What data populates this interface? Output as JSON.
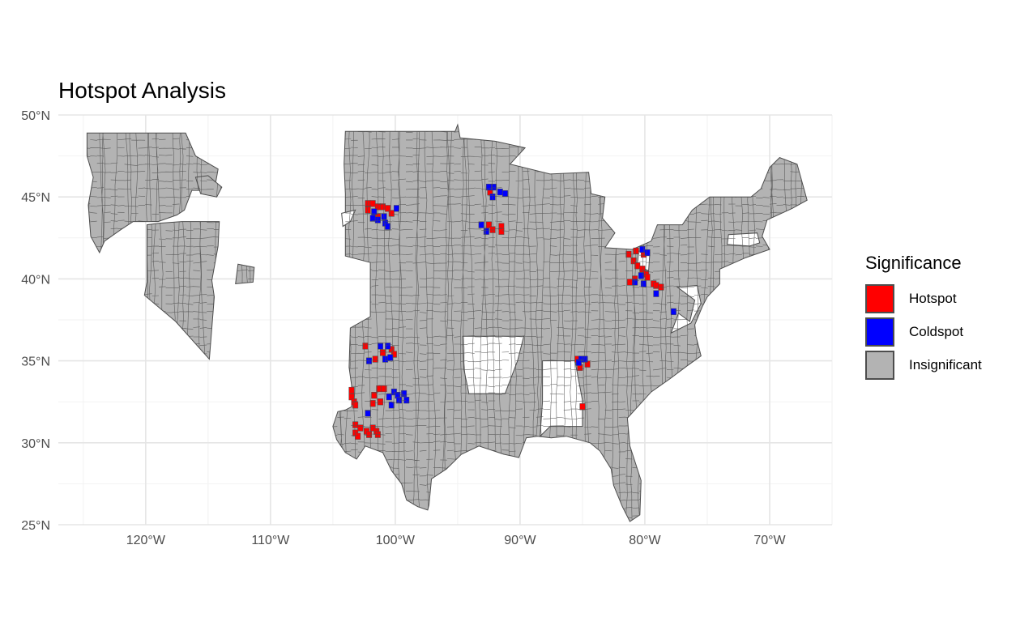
{
  "chart_data": {
    "type": "choropleth-map",
    "title": "Hotspot Analysis",
    "projection": "equirectangular",
    "xlim": [
      -127,
      -65
    ],
    "ylim": [
      25,
      50
    ],
    "x_ticks": [
      {
        "value": -120,
        "label": "120°W"
      },
      {
        "value": -110,
        "label": "110°W"
      },
      {
        "value": -100,
        "label": "100°W"
      },
      {
        "value": -90,
        "label": "90°W"
      },
      {
        "value": -80,
        "label": "80°W"
      },
      {
        "value": -70,
        "label": "70°W"
      }
    ],
    "y_ticks": [
      {
        "value": 25,
        "label": "25°N"
      },
      {
        "value": 30,
        "label": "30°N"
      },
      {
        "value": 35,
        "label": "35°N"
      },
      {
        "value": 40,
        "label": "40°N"
      },
      {
        "value": 45,
        "label": "45°N"
      },
      {
        "value": 50,
        "label": "50°N"
      }
    ],
    "grid": true,
    "legend": {
      "title": "Significance",
      "position": "right",
      "entries": [
        {
          "label": "Hotspot",
          "color": "#ff0000"
        },
        {
          "label": "Coldspot",
          "color": "#0000ff"
        },
        {
          "label": "Insignificant",
          "color": "#b3b3b3"
        }
      ]
    },
    "colors": {
      "hotspot": "#ff0000",
      "coldspot": "#0000ff",
      "insignificant": "#b3b3b3",
      "border": "#4d4d4d",
      "grid": "#e5e5e5"
    },
    "regions": [
      {
        "name": "northwest",
        "lonlat": [
          [
            -124.7,
            48.9
          ],
          [
            -116.8,
            48.9
          ],
          [
            -116,
            47.5
          ],
          [
            -114.2,
            46.7
          ],
          [
            -114.5,
            45.4
          ],
          [
            -116.3,
            45.4
          ],
          [
            -116.9,
            44.2
          ],
          [
            -117.5,
            43.9
          ],
          [
            -119,
            43.5
          ],
          [
            -121,
            43.5
          ],
          [
            -122,
            43
          ],
          [
            -123.3,
            42.3
          ],
          [
            -123.7,
            41.6
          ],
          [
            -124.4,
            42.6
          ],
          [
            -124.6,
            44.5
          ],
          [
            -124.2,
            46.2
          ],
          [
            -124.7,
            47.5
          ]
        ]
      },
      {
        "name": "nevada",
        "lonlat": [
          [
            -119.9,
            43.3
          ],
          [
            -119.9,
            39.8
          ],
          [
            -120.1,
            39
          ],
          [
            -117.6,
            37.4
          ],
          [
            -114.9,
            35.1
          ],
          [
            -114.5,
            38.9
          ],
          [
            -114.7,
            39.9
          ],
          [
            -114.2,
            42
          ],
          [
            -114.1,
            43.5
          ],
          [
            -117.1,
            43.5
          ],
          [
            -118.9,
            43.4
          ]
        ]
      },
      {
        "name": "idaho-fragment",
        "lonlat": [
          [
            -116,
            46.2
          ],
          [
            -115,
            46.3
          ],
          [
            -113.9,
            45.6
          ],
          [
            -114.3,
            45
          ],
          [
            -115.6,
            45.2
          ]
        ]
      },
      {
        "name": "utah-fragment",
        "lonlat": [
          [
            -112.6,
            40.9
          ],
          [
            -111.3,
            40.7
          ],
          [
            -111.4,
            39.8
          ],
          [
            -112.8,
            39.7
          ]
        ]
      },
      {
        "name": "east-us",
        "lonlat": [
          [
            -104,
            49
          ],
          [
            -95.2,
            49
          ],
          [
            -95,
            49.4
          ],
          [
            -94.8,
            48.6
          ],
          [
            -92,
            48.4
          ],
          [
            -89.6,
            48
          ],
          [
            -90.8,
            47
          ],
          [
            -87.6,
            46.4
          ],
          [
            -84.5,
            46.5
          ],
          [
            -84.3,
            45.2
          ],
          [
            -83.2,
            45
          ],
          [
            -83.4,
            43.7
          ],
          [
            -82.4,
            42.8
          ],
          [
            -83.2,
            41.9
          ],
          [
            -81,
            41.8
          ],
          [
            -79.5,
            42.3
          ],
          [
            -79,
            43.3
          ],
          [
            -77,
            43.3
          ],
          [
            -76.2,
            44.2
          ],
          [
            -74.8,
            45
          ],
          [
            -71.5,
            45
          ],
          [
            -70.7,
            45.5
          ],
          [
            -70,
            46.8
          ],
          [
            -69.2,
            47.4
          ],
          [
            -67.8,
            47
          ],
          [
            -67,
            44.8
          ],
          [
            -68.2,
            44.3
          ],
          [
            -70.2,
            43.6
          ],
          [
            -70.6,
            42.6
          ],
          [
            -70,
            41.8
          ],
          [
            -71.9,
            41.3
          ],
          [
            -74,
            40.6
          ],
          [
            -74,
            39.7
          ],
          [
            -75,
            38.9
          ],
          [
            -75.4,
            38.3
          ],
          [
            -76,
            37.2
          ],
          [
            -75.9,
            36.5
          ],
          [
            -75.5,
            35.3
          ],
          [
            -76.6,
            34.7
          ],
          [
            -78,
            33.9
          ],
          [
            -79.5,
            33.1
          ],
          [
            -81.4,
            31.5
          ],
          [
            -81.2,
            29.8
          ],
          [
            -80.3,
            27.7
          ],
          [
            -80.4,
            25.6
          ],
          [
            -81.2,
            25.2
          ],
          [
            -81.8,
            26.1
          ],
          [
            -82.5,
            27.4
          ],
          [
            -82.7,
            28.4
          ],
          [
            -83.6,
            29.5
          ],
          [
            -84.4,
            30
          ],
          [
            -86.3,
            30.4
          ],
          [
            -87.5,
            30.3
          ],
          [
            -88.6,
            30.4
          ],
          [
            -89.5,
            30.3
          ],
          [
            -90.1,
            29.1
          ],
          [
            -91.3,
            29.3
          ],
          [
            -93.3,
            29.8
          ],
          [
            -94.7,
            29.3
          ],
          [
            -95.9,
            28.4
          ],
          [
            -97.1,
            27.8
          ],
          [
            -97.3,
            26.2
          ],
          [
            -97.4,
            25.9
          ],
          [
            -98.2,
            26.1
          ],
          [
            -99.1,
            26.5
          ],
          [
            -99.5,
            27.5
          ],
          [
            -100.3,
            28.3
          ],
          [
            -101,
            29.4
          ],
          [
            -102.4,
            29.8
          ],
          [
            -103.1,
            29
          ],
          [
            -104,
            29.4
          ],
          [
            -104.7,
            30.2
          ],
          [
            -105,
            31
          ],
          [
            -104.6,
            31.9
          ],
          [
            -104,
            32
          ],
          [
            -103.5,
            32.2
          ],
          [
            -103.5,
            33.5
          ],
          [
            -103.7,
            34.6
          ],
          [
            -103.6,
            37
          ],
          [
            -102,
            37.7
          ],
          [
            -102,
            41
          ],
          [
            -104,
            41.4
          ],
          [
            -104,
            45.2
          ],
          [
            -104.1,
            47
          ]
        ]
      }
    ],
    "holes": [
      {
        "name": "arkansas-gap",
        "lonlat": [
          [
            -94.6,
            36.5
          ],
          [
            -89.7,
            36.5
          ],
          [
            -90.2,
            35
          ],
          [
            -91.2,
            33
          ],
          [
            -94.1,
            33
          ],
          [
            -94.5,
            34.5
          ]
        ]
      },
      {
        "name": "alabama-gap",
        "lonlat": [
          [
            -88.2,
            35
          ],
          [
            -85.6,
            35
          ],
          [
            -85,
            32.6
          ],
          [
            -85,
            31
          ],
          [
            -87.6,
            31
          ],
          [
            -88.4,
            30.4
          ],
          [
            -88.2,
            32.5
          ]
        ]
      },
      {
        "name": "chesapeake-gap",
        "lonlat": [
          [
            -77.4,
            39.5
          ],
          [
            -75.8,
            39.6
          ],
          [
            -75.5,
            38.5
          ],
          [
            -76.3,
            37.3
          ],
          [
            -77.9,
            36.7
          ],
          [
            -77.3,
            37.9
          ],
          [
            -76.4,
            37.4
          ],
          [
            -76,
            38.7
          ]
        ]
      },
      {
        "name": "ohio-gap",
        "lonlat": [
          [
            -80.5,
            41.7
          ],
          [
            -79.6,
            41.6
          ],
          [
            -79.7,
            40.5
          ],
          [
            -80.6,
            40.8
          ]
        ]
      },
      {
        "name": "massachusetts-gap",
        "lonlat": [
          [
            -73.3,
            42.7
          ],
          [
            -71,
            42.8
          ],
          [
            -70.8,
            42.2
          ],
          [
            -71.6,
            42
          ],
          [
            -73.4,
            42.1
          ]
        ]
      },
      {
        "name": "southdakota-gap",
        "lonlat": [
          [
            -104.3,
            44
          ],
          [
            -103.2,
            44.2
          ],
          [
            -103.6,
            43.5
          ],
          [
            -104.2,
            43.2
          ]
        ]
      }
    ],
    "cells": {
      "hotspot": [
        [
          -102.2,
          44.6
        ],
        [
          -101.8,
          44.6
        ],
        [
          -101.4,
          44.4
        ],
        [
          -101,
          44.4
        ],
        [
          -100.6,
          44.3
        ],
        [
          -102.2,
          44.2
        ],
        [
          -101.4,
          43.8
        ],
        [
          -100.3,
          44
        ],
        [
          -92.5,
          43.3
        ],
        [
          -92.2,
          43
        ],
        [
          -91.5,
          43.2
        ],
        [
          -91.5,
          42.9
        ],
        [
          -92.4,
          45.3
        ],
        [
          -102.4,
          35.9
        ],
        [
          -101.6,
          35.1
        ],
        [
          -100.3,
          35.7
        ],
        [
          -100.1,
          35.4
        ],
        [
          -101,
          35.5
        ],
        [
          -103.5,
          33.2
        ],
        [
          -103.5,
          32.8
        ],
        [
          -103.3,
          32.5
        ],
        [
          -103.2,
          32.3
        ],
        [
          -101.7,
          32.9
        ],
        [
          -101.3,
          33.3
        ],
        [
          -100.9,
          33.3
        ],
        [
          -101.8,
          32.4
        ],
        [
          -101.2,
          32.5
        ],
        [
          -103.2,
          31.1
        ],
        [
          -102.8,
          30.9
        ],
        [
          -102.3,
          30.7
        ],
        [
          -101.8,
          30.9
        ],
        [
          -101.5,
          30.7
        ],
        [
          -103.2,
          30.6
        ],
        [
          -103,
          30.4
        ],
        [
          -102.1,
          30.5
        ],
        [
          -101.4,
          30.5
        ],
        [
          -81.3,
          41.5
        ],
        [
          -80.9,
          41.1
        ],
        [
          -80.6,
          40.8
        ],
        [
          -80.2,
          40.6
        ],
        [
          -79.9,
          40.3
        ],
        [
          -79.8,
          40.1
        ],
        [
          -80.8,
          40
        ],
        [
          -81.2,
          39.8
        ],
        [
          -79.3,
          39.7
        ],
        [
          -79.1,
          39.6
        ],
        [
          -78.7,
          39.5
        ],
        [
          -80.1,
          41.5
        ],
        [
          -80.7,
          41.7
        ],
        [
          -85.4,
          35.1
        ],
        [
          -84.6,
          34.8
        ],
        [
          -85.2,
          34.6
        ],
        [
          -85,
          32.2
        ]
      ],
      "coldspot": [
        [
          -92.5,
          45.6
        ],
        [
          -92.1,
          45.6
        ],
        [
          -91.6,
          45.3
        ],
        [
          -91.2,
          45.2
        ],
        [
          -92.2,
          45
        ],
        [
          -93.1,
          43.3
        ],
        [
          -92.7,
          42.9
        ],
        [
          -101.7,
          44.1
        ],
        [
          -101.8,
          43.7
        ],
        [
          -101.4,
          43.6
        ],
        [
          -100.8,
          43.4
        ],
        [
          -100.9,
          43.8
        ],
        [
          -100.6,
          43.2
        ],
        [
          -99.9,
          44.3
        ],
        [
          -101.2,
          35.9
        ],
        [
          -100.6,
          35.9
        ],
        [
          -102.1,
          35
        ],
        [
          -100.8,
          35.1
        ],
        [
          -100.4,
          35.2
        ],
        [
          -100.1,
          33.1
        ],
        [
          -99.8,
          32.9
        ],
        [
          -99.3,
          33
        ],
        [
          -100.5,
          32.8
        ],
        [
          -99.7,
          32.6
        ],
        [
          -99.1,
          32.6
        ],
        [
          -100.3,
          32.3
        ],
        [
          -102.2,
          31.8
        ],
        [
          -80.2,
          41.8
        ],
        [
          -79.8,
          41.6
        ],
        [
          -80.3,
          40.2
        ],
        [
          -80.8,
          39.8
        ],
        [
          -80.1,
          39.7
        ],
        [
          -79.1,
          39.1
        ],
        [
          -77.7,
          38
        ],
        [
          -85.1,
          35.1
        ],
        [
          -84.8,
          35.1
        ],
        [
          -85.3,
          34.9
        ]
      ]
    }
  }
}
